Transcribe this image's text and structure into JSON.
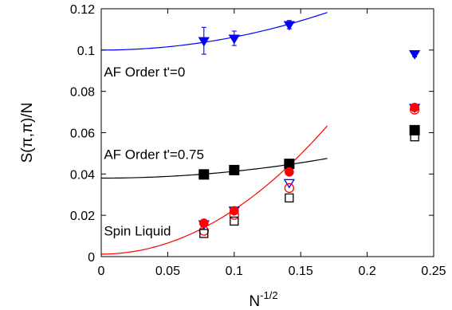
{
  "chart_data": {
    "type": "scatter",
    "xlabel": "N",
    "xlabel_sup": "-1/2",
    "ylabel": "S(π,π)/N",
    "xlim": [
      0,
      0.25
    ],
    "ylim": [
      0,
      0.12
    ],
    "xticks": [
      0,
      0.05,
      0.1,
      0.15,
      0.2,
      0.25
    ],
    "xtick_labels": [
      "0",
      "0.05",
      "0.1",
      "0.15",
      "0.2",
      "0.25"
    ],
    "yticks": [
      0,
      0.02,
      0.04,
      0.06,
      0.08,
      0.1,
      0.12
    ],
    "ytick_labels": [
      "0",
      "0.02",
      "0.04",
      "0.06",
      "0.08",
      "0.1",
      "0.12"
    ],
    "grid": false,
    "legend": "none",
    "annotations": [
      {
        "text": "AF Order t'=0",
        "x": 0.002,
        "y": 0.0895
      },
      {
        "text": "AF Order t'=0.75",
        "x": 0.002,
        "y": 0.0495
      },
      {
        "text": "Spin Liquid",
        "x": 0.002,
        "y": 0.0125
      }
    ],
    "series": [
      {
        "marker": "triangle-down-filled",
        "color": "#0000ff",
        "x": [
          0.0772,
          0.1,
          0.1414,
          0.2357
        ],
        "y": [
          0.1045,
          0.1057,
          0.1123,
          0.0982
        ],
        "yerr": [
          0.0065,
          0.0035,
          0.002,
          0.0015
        ]
      },
      {
        "marker": "square-filled",
        "color": "#000000",
        "x": [
          0.0772,
          0.1,
          0.1414,
          0.2357
        ],
        "y": [
          0.0398,
          0.0419,
          0.0449,
          0.0612
        ],
        "yerr": [
          0.0015,
          0.0008,
          0.0006,
          0.0005
        ]
      },
      {
        "marker": "triangle-down-open",
        "color": "#0000ff",
        "x": [
          0.0772,
          0.1,
          0.1414,
          0.2357
        ],
        "y": [
          0.0158,
          0.0225,
          0.0358,
          0.0722
        ],
        "yerr": [
          0,
          0,
          0,
          0
        ]
      },
      {
        "marker": "circle-filled",
        "color": "#ff0000",
        "x": [
          0.0772,
          0.1,
          0.1414,
          0.2357
        ],
        "y": [
          0.0162,
          0.0222,
          0.041,
          0.0722
        ],
        "yerr": [
          0,
          0,
          0,
          0
        ]
      },
      {
        "marker": "circle-open",
        "color": "#ff0000",
        "x": [
          0.0772,
          0.1,
          0.1414,
          0.2357
        ],
        "y": [
          0.0125,
          0.0202,
          0.0332,
          0.0712
        ],
        "yerr": [
          0,
          0,
          0,
          0
        ]
      },
      {
        "marker": "square-open",
        "color": "#000000",
        "x": [
          0.0772,
          0.1,
          0.1414,
          0.2357
        ],
        "y": [
          0.0112,
          0.0172,
          0.0284,
          0.058
        ],
        "yerr": [
          0,
          0,
          0,
          0
        ]
      }
    ],
    "fits": [
      {
        "color": "#0000ff",
        "a": 0.1,
        "b": 0.63,
        "x_range": [
          0,
          0.17
        ]
      },
      {
        "color": "#000000",
        "a": 0.038,
        "b": 0.33,
        "x_range": [
          0,
          0.17
        ]
      },
      {
        "color": "#ff0000",
        "a": 0.0012,
        "b": 2.15,
        "x_range": [
          0,
          0.17
        ]
      }
    ]
  }
}
